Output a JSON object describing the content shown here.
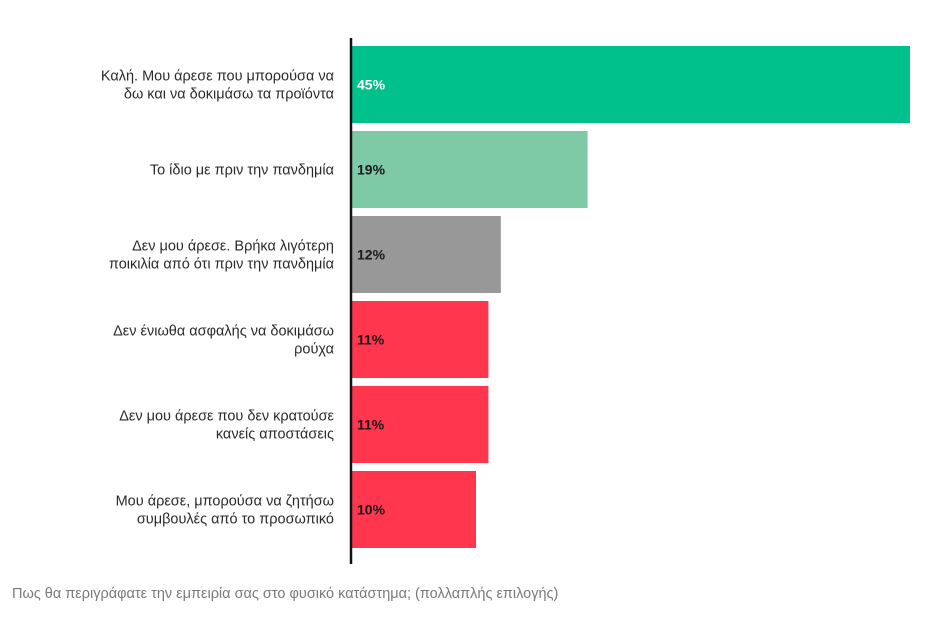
{
  "chart_data": {
    "type": "bar",
    "orientation": "horizontal",
    "categories": [
      [
        "Καλή. Μου άρεσε που μπορούσα να",
        "δω και να δοκιμάσω τα προϊόντα"
      ],
      [
        "Το ίδιο με πριν την πανδημία"
      ],
      [
        "Δεν μου άρεσε. Βρήκα λιγότερη",
        "ποικιλία από ότι πριν την πανδημία"
      ],
      [
        "Δεν ένιωθα ασφαλής να δοκιμάσω",
        "ρούχα"
      ],
      [
        "Δεν μου άρεσε που δεν κρατούσε",
        "κανείς αποστάσεις"
      ],
      [
        "Μου άρεσε, μπορούσα να ζητήσω",
        "συμβουλές από το προσωπικό"
      ]
    ],
    "values": [
      45,
      19,
      12,
      11,
      11,
      10
    ],
    "value_labels": [
      "45%",
      "19%",
      "12%",
      "11%",
      "11%",
      "10%"
    ],
    "bar_colors": [
      "#00c08b",
      "#7ecaa7",
      "#989898",
      "#ff364e",
      "#ff364e",
      "#ff364e"
    ],
    "value_label_colors": [
      "#ffffff",
      "#1a1a1a",
      "#1a1a1a",
      "#1a1a1a",
      "#1a1a1a",
      "#1a1a1a"
    ],
    "xlim": [
      0,
      45
    ],
    "grid": false,
    "legend": "none",
    "axis_color": "#111111"
  },
  "caption": "Πως θα περιγράφατε την εμπειρία σας στο φυσικό κατάστημα; (πολλαπλής επιλογής)"
}
